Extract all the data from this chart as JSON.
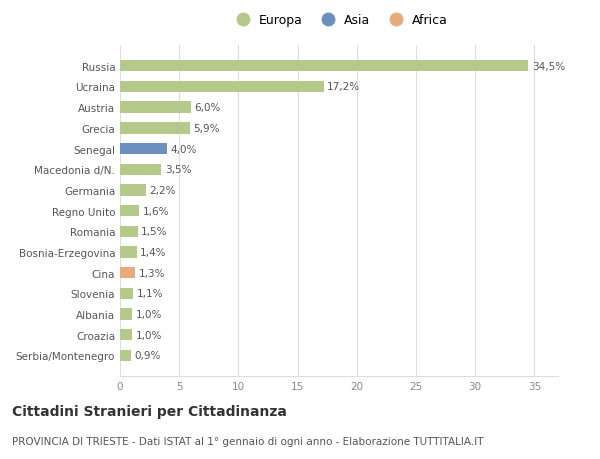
{
  "categories": [
    "Serbia/Montenegro",
    "Croazia",
    "Albania",
    "Slovenia",
    "Cina",
    "Bosnia-Erzegovina",
    "Romania",
    "Regno Unito",
    "Germania",
    "Macedonia d/N.",
    "Senegal",
    "Grecia",
    "Austria",
    "Ucraina",
    "Russia"
  ],
  "values": [
    34.5,
    17.2,
    6.0,
    5.9,
    4.0,
    3.5,
    2.2,
    1.6,
    1.5,
    1.4,
    1.3,
    1.1,
    1.0,
    1.0,
    0.9
  ],
  "labels": [
    "34,5%",
    "17,2%",
    "6,0%",
    "5,9%",
    "4,0%",
    "3,5%",
    "2,2%",
    "1,6%",
    "1,5%",
    "1,4%",
    "1,3%",
    "1,1%",
    "1,0%",
    "1,0%",
    "0,9%"
  ],
  "colors": [
    "#b5c98a",
    "#b5c98a",
    "#b5c98a",
    "#b5c98a",
    "#6b8fbe",
    "#b5c98a",
    "#b5c98a",
    "#b5c98a",
    "#b5c98a",
    "#b5c98a",
    "#e8aa7a",
    "#b5c98a",
    "#b5c98a",
    "#b5c98a",
    "#b5c98a"
  ],
  "legend_labels": [
    "Europa",
    "Asia",
    "Africa"
  ],
  "legend_colors": [
    "#b5c98a",
    "#6b8fbe",
    "#e8aa7a"
  ],
  "title": "Cittadini Stranieri per Cittadinanza",
  "subtitle": "PROVINCIA DI TRIESTE - Dati ISTAT al 1° gennaio di ogni anno - Elaborazione TUTTITALIA.IT",
  "xlim": [
    0,
    37
  ],
  "xticks": [
    0,
    5,
    10,
    15,
    20,
    25,
    30,
    35
  ],
  "background_color": "#ffffff",
  "grid_color": "#dddddd",
  "bar_height": 0.55,
  "title_fontsize": 10,
  "subtitle_fontsize": 7.5,
  "tick_fontsize": 7.5,
  "label_fontsize": 7.5,
  "legend_fontsize": 9
}
